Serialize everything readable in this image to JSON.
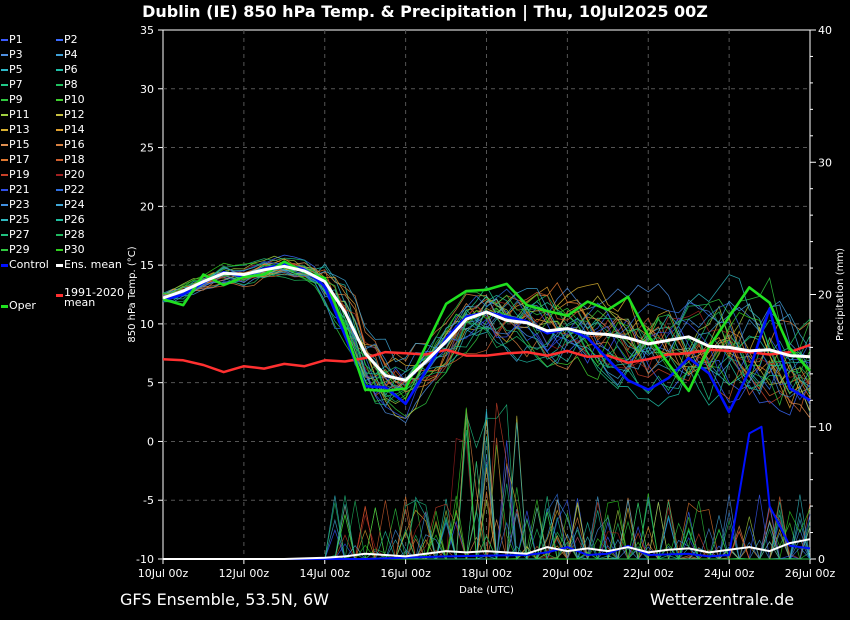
{
  "chart_data": {
    "type": "line",
    "title": "Dublin  (IE)  850 hPa Temp. & Precipitation | Thu, 10Jul2025 00Z",
    "xlabel": "Date (UTC)",
    "ylabel": "850 hPa Temp. (°C)",
    "y2label": "Precipitation (mm)",
    "x_ticks": [
      "10Jul 00z",
      "12Jul 00z",
      "14Jul 00z",
      "16Jul 00z",
      "18Jul 00z",
      "20Jul 00z",
      "22Jul 00z",
      "24Jul 00z",
      "26Jul 00z"
    ],
    "x_range_days": [
      0,
      16
    ],
    "ylim": [
      -10,
      35
    ],
    "y_ticks": [
      -10,
      -5,
      0,
      5,
      10,
      15,
      20,
      25,
      30,
      35
    ],
    "y2lim": [
      0,
      40
    ],
    "y2_ticks": [
      0,
      10,
      20,
      30,
      40
    ],
    "grid": true,
    "legend_placement": "left",
    "legend": [
      {
        "name": "P1",
        "color": "#3b5bff"
      },
      {
        "name": "P2",
        "color": "#3b6bff"
      },
      {
        "name": "P3",
        "color": "#4f8fe0"
      },
      {
        "name": "P4",
        "color": "#3fa0d8"
      },
      {
        "name": "P5",
        "color": "#2fb8c8"
      },
      {
        "name": "P6",
        "color": "#20c0a8"
      },
      {
        "name": "P7",
        "color": "#20c888"
      },
      {
        "name": "P8",
        "color": "#20c060"
      },
      {
        "name": "P9",
        "color": "#30c840"
      },
      {
        "name": "P10",
        "color": "#40d030"
      },
      {
        "name": "P11",
        "color": "#a0d040"
      },
      {
        "name": "P12",
        "color": "#c8c040"
      },
      {
        "name": "P13",
        "color": "#d8b030"
      },
      {
        "name": "P14",
        "color": "#e0a030"
      },
      {
        "name": "P15",
        "color": "#e09050"
      },
      {
        "name": "P16",
        "color": "#d88040"
      },
      {
        "name": "P17",
        "color": "#e07830"
      },
      {
        "name": "P18",
        "color": "#d06030"
      },
      {
        "name": "P19",
        "color": "#c84028"
      },
      {
        "name": "P20",
        "color": "#a02020"
      },
      {
        "name": "P21",
        "color": "#3050e8"
      },
      {
        "name": "P22",
        "color": "#3070e0"
      },
      {
        "name": "P23",
        "color": "#4090e0"
      },
      {
        "name": "P24",
        "color": "#40a8d8"
      },
      {
        "name": "P25",
        "color": "#30b8c0"
      },
      {
        "name": "P26",
        "color": "#20c0a0"
      },
      {
        "name": "P27",
        "color": "#20c080"
      },
      {
        "name": "P28",
        "color": "#20b860"
      },
      {
        "name": "P29",
        "color": "#30c840"
      },
      {
        "name": "P30",
        "color": "#30d020"
      },
      {
        "name": "Control",
        "color": "#0010ff"
      },
      {
        "name": "Ens. mean",
        "color": "#ffffff"
      },
      {
        "name": "1991-2020 mean",
        "color": "#ff3030"
      },
      {
        "name": "Oper",
        "color": "#20e020"
      }
    ],
    "series": [
      {
        "name": "Ens. mean",
        "color": "#ffffff",
        "points": [
          [
            0,
            12.2
          ],
          [
            0.5,
            12.8
          ],
          [
            1,
            13.6
          ],
          [
            1.5,
            14.3
          ],
          [
            2,
            14.2
          ],
          [
            2.5,
            14.6
          ],
          [
            3,
            14.9
          ],
          [
            3.5,
            14.5
          ],
          [
            4,
            13.6
          ],
          [
            4.5,
            11.0
          ],
          [
            5,
            7.5
          ],
          [
            5.5,
            5.6
          ],
          [
            6,
            5.2
          ],
          [
            6.5,
            6.8
          ],
          [
            7,
            8.5
          ],
          [
            7.5,
            10.4
          ],
          [
            8,
            11.0
          ],
          [
            8.5,
            10.3
          ],
          [
            9,
            10.1
          ],
          [
            9.5,
            9.4
          ],
          [
            10,
            9.6
          ],
          [
            10.5,
            9.2
          ],
          [
            11,
            9.1
          ],
          [
            11.5,
            8.8
          ],
          [
            12,
            8.3
          ],
          [
            12.5,
            8.6
          ],
          [
            13,
            8.9
          ],
          [
            13.5,
            8.1
          ],
          [
            14,
            8.0
          ],
          [
            14.5,
            7.7
          ],
          [
            15,
            7.8
          ],
          [
            15.5,
            7.3
          ],
          [
            16,
            7.2
          ]
        ]
      },
      {
        "name": "Control",
        "color": "#0010ff",
        "points": [
          [
            0,
            12.0
          ],
          [
            0.5,
            12.5
          ],
          [
            1,
            13.5
          ],
          [
            1.5,
            14.4
          ],
          [
            2,
            14.0
          ],
          [
            2.5,
            14.7
          ],
          [
            3,
            15.1
          ],
          [
            3.5,
            14.6
          ],
          [
            4,
            13.2
          ],
          [
            4.5,
            9.0
          ],
          [
            5,
            4.7
          ],
          [
            5.5,
            4.6
          ],
          [
            6,
            3.2
          ],
          [
            6.5,
            6.0
          ],
          [
            7,
            8.8
          ],
          [
            7.5,
            10.6
          ],
          [
            8,
            11.0
          ],
          [
            8.5,
            10.6
          ],
          [
            9,
            10.2
          ],
          [
            9.5,
            9.2
          ],
          [
            10,
            9.6
          ],
          [
            10.5,
            8.8
          ],
          [
            11,
            7.0
          ],
          [
            11.5,
            5.2
          ],
          [
            12,
            4.4
          ],
          [
            12.5,
            5.4
          ],
          [
            13,
            7.1
          ],
          [
            13.5,
            5.8
          ],
          [
            14,
            2.5
          ],
          [
            14.5,
            6.0
          ],
          [
            15,
            11.3
          ],
          [
            15.5,
            4.5
          ],
          [
            16,
            3.5
          ]
        ]
      },
      {
        "name": "Oper",
        "color": "#20e020",
        "points": [
          [
            0,
            12.1
          ],
          [
            0.5,
            11.6
          ],
          [
            1,
            14.2
          ],
          [
            1.5,
            13.3
          ],
          [
            2,
            14.0
          ],
          [
            2.5,
            14.2
          ],
          [
            3,
            15.3
          ],
          [
            3.5,
            14.4
          ],
          [
            4,
            13.9
          ],
          [
            4.5,
            9.6
          ],
          [
            5,
            4.4
          ],
          [
            5.5,
            4.3
          ],
          [
            6,
            4.5
          ],
          [
            6.5,
            8.1
          ],
          [
            7,
            11.7
          ],
          [
            7.5,
            12.8
          ],
          [
            8,
            12.9
          ],
          [
            8.5,
            13.4
          ],
          [
            9,
            11.6
          ],
          [
            9.5,
            11.1
          ],
          [
            10,
            10.7
          ],
          [
            10.5,
            11.9
          ],
          [
            11,
            11.2
          ],
          [
            11.5,
            12.3
          ],
          [
            12,
            9.0
          ],
          [
            12.5,
            6.6
          ],
          [
            13,
            4.3
          ],
          [
            13.5,
            8.0
          ],
          [
            14,
            10.6
          ],
          [
            14.5,
            13.1
          ],
          [
            15,
            11.8
          ],
          [
            15.5,
            7.9
          ],
          [
            16,
            6.0
          ]
        ]
      },
      {
        "name": "1991-2020 mean",
        "color": "#ff3030",
        "points": [
          [
            0,
            7.0
          ],
          [
            0.5,
            6.9
          ],
          [
            1,
            6.5
          ],
          [
            1.5,
            5.9
          ],
          [
            2,
            6.4
          ],
          [
            2.5,
            6.2
          ],
          [
            3,
            6.6
          ],
          [
            3.5,
            6.4
          ],
          [
            4,
            6.9
          ],
          [
            4.5,
            6.8
          ],
          [
            5,
            7.1
          ],
          [
            5.5,
            7.6
          ],
          [
            6,
            7.5
          ],
          [
            6.5,
            7.4
          ],
          [
            7,
            7.8
          ],
          [
            7.5,
            7.3
          ],
          [
            8,
            7.3
          ],
          [
            8.5,
            7.5
          ],
          [
            9,
            7.6
          ],
          [
            9.5,
            7.3
          ],
          [
            10,
            7.7
          ],
          [
            10.5,
            7.2
          ],
          [
            11,
            7.3
          ],
          [
            11.5,
            6.7
          ],
          [
            12,
            7.0
          ],
          [
            12.5,
            7.4
          ],
          [
            13,
            7.5
          ],
          [
            13.5,
            7.8
          ],
          [
            14,
            7.7
          ],
          [
            14.5,
            7.6
          ],
          [
            15,
            7.4
          ],
          [
            15.5,
            7.6
          ],
          [
            16,
            8.2
          ]
        ]
      },
      {
        "name": "Ens. mean precipitation",
        "color": "#ffffff",
        "axis": "precip",
        "points": [
          [
            0,
            0
          ],
          [
            1,
            0
          ],
          [
            2,
            0
          ],
          [
            3,
            0
          ],
          [
            4,
            0.1
          ],
          [
            4.5,
            0.2
          ],
          [
            5,
            0.4
          ],
          [
            5.5,
            0.3
          ],
          [
            6,
            0.2
          ],
          [
            6.5,
            0.4
          ],
          [
            7,
            0.6
          ],
          [
            7.5,
            0.5
          ],
          [
            8,
            0.6
          ],
          [
            8.5,
            0.5
          ],
          [
            9,
            0.4
          ],
          [
            9.5,
            0.9
          ],
          [
            10,
            0.6
          ],
          [
            10.5,
            0.8
          ],
          [
            11,
            0.6
          ],
          [
            11.5,
            0.9
          ],
          [
            12,
            0.5
          ],
          [
            12.5,
            0.7
          ],
          [
            13,
            0.8
          ],
          [
            13.5,
            0.5
          ],
          [
            14,
            0.7
          ],
          [
            14.5,
            0.9
          ],
          [
            15,
            0.6
          ],
          [
            15.5,
            1.2
          ],
          [
            16,
            1.5
          ]
        ]
      },
      {
        "name": "Control precipitation",
        "color": "#0010ff",
        "axis": "precip",
        "points": [
          [
            0,
            0
          ],
          [
            5,
            0
          ],
          [
            7,
            0.2
          ],
          [
            9,
            0.3
          ],
          [
            9.5,
            0.5
          ],
          [
            10,
            0.9
          ],
          [
            10.5,
            0.3
          ],
          [
            11,
            0.4
          ],
          [
            11.5,
            1.0
          ],
          [
            12,
            0.3
          ],
          [
            13,
            0.4
          ],
          [
            13.5,
            0.2
          ],
          [
            14,
            0.3
          ],
          [
            14.5,
            9.5
          ],
          [
            14.8,
            10.0
          ],
          [
            15,
            4.0
          ],
          [
            15.5,
            1.0
          ],
          [
            16,
            0.8
          ]
        ]
      }
    ],
    "member_curve_count": 30
  },
  "footer": {
    "left": "GFS Ensemble, 53.5N, 6W",
    "right": "Wetterzentrale.de"
  }
}
